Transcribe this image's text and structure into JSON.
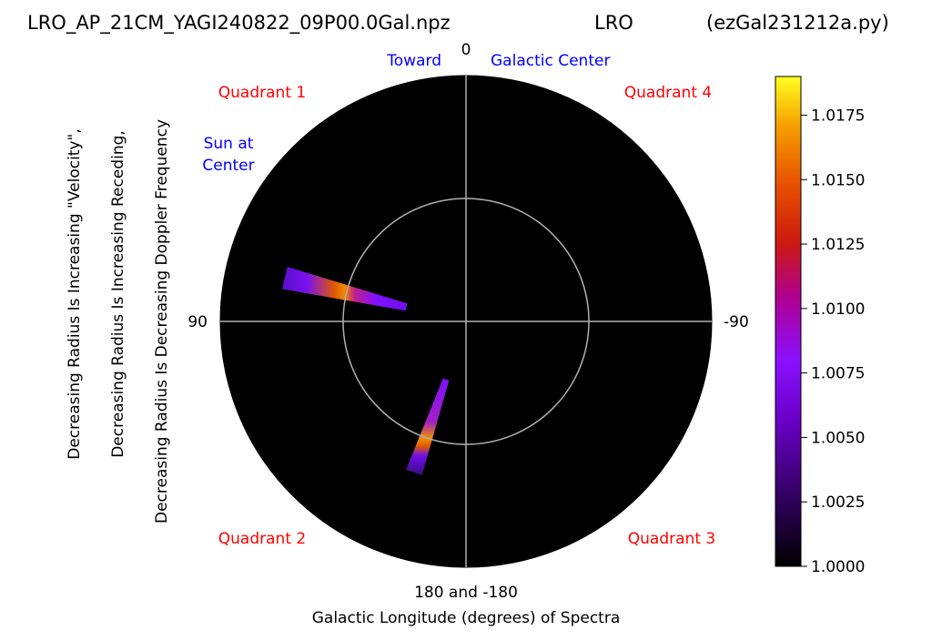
{
  "chart_data": {
    "type": "polar-heatmap",
    "title_left": "LRO_AP_21CM_YAGI240822_09P00.0Gal.npz",
    "title_center": "LRO",
    "title_right": "(ezGal231212a.py)",
    "top_label": "0",
    "toward_label": "Toward",
    "galactic_center_label": "Galactic Center",
    "left_label": "90",
    "right_label": "-90",
    "bottom_label": "180 and -180",
    "xlabel": "Galactic Longitude (degrees) of Spectra",
    "ylabel_lines": [
      "Decreasing Radius Is Increasing \"Velocity\",",
      "Decreasing Radius Is Increasing Receding,",
      "Decreasing Radius Is Decreasing Doppler Frequency"
    ],
    "sun_label_lines": [
      "Sun at",
      "Center"
    ],
    "quadrants": [
      "Quadrant 1",
      "Quadrant 4",
      "Quadrant 2",
      "Quadrant 3"
    ],
    "colorbar": {
      "min": 1.0,
      "max": 1.019,
      "ticks": [
        "1.0000",
        "1.0025",
        "1.0050",
        "1.0075",
        "1.0100",
        "1.0125",
        "1.0150",
        "1.0175"
      ],
      "tick_values": [
        1.0,
        1.0025,
        1.005,
        1.0075,
        1.01,
        1.0125,
        1.015,
        1.0175
      ],
      "colormap": "gnuplot"
    },
    "reference_circle_fraction": 0.5,
    "wedges": [
      {
        "longitude_start": 73,
        "longitude_end": 80,
        "radius_inner": 0.25,
        "radius_outer": 0.76,
        "peak_radius": 0.5,
        "peak_value": 1.016
      },
      {
        "longitude_start": 158,
        "longitude_end": 164,
        "radius_inner": 0.25,
        "radius_outer": 0.65,
        "peak_radius": 0.5,
        "peak_value": 1.0175
      }
    ]
  }
}
